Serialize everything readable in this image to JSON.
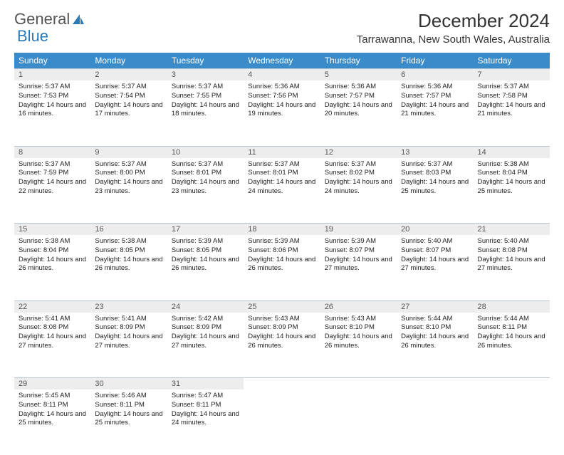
{
  "brand": {
    "part1": "General",
    "part2": "Blue"
  },
  "title": "December 2024",
  "location": "Tarrawanna, New South Wales, Australia",
  "colors": {
    "header_bg": "#3a8bc9",
    "daynum_bg": "#ededed",
    "week_border": "#6b8fad",
    "logo_blue": "#2a7ab8"
  },
  "weekdays": [
    "Sunday",
    "Monday",
    "Tuesday",
    "Wednesday",
    "Thursday",
    "Friday",
    "Saturday"
  ],
  "weeks": [
    [
      {
        "n": "1",
        "sr": "5:37 AM",
        "ss": "7:53 PM",
        "dl": "14 hours and 16 minutes."
      },
      {
        "n": "2",
        "sr": "5:37 AM",
        "ss": "7:54 PM",
        "dl": "14 hours and 17 minutes."
      },
      {
        "n": "3",
        "sr": "5:37 AM",
        "ss": "7:55 PM",
        "dl": "14 hours and 18 minutes."
      },
      {
        "n": "4",
        "sr": "5:36 AM",
        "ss": "7:56 PM",
        "dl": "14 hours and 19 minutes."
      },
      {
        "n": "5",
        "sr": "5:36 AM",
        "ss": "7:57 PM",
        "dl": "14 hours and 20 minutes."
      },
      {
        "n": "6",
        "sr": "5:36 AM",
        "ss": "7:57 PM",
        "dl": "14 hours and 21 minutes."
      },
      {
        "n": "7",
        "sr": "5:37 AM",
        "ss": "7:58 PM",
        "dl": "14 hours and 21 minutes."
      }
    ],
    [
      {
        "n": "8",
        "sr": "5:37 AM",
        "ss": "7:59 PM",
        "dl": "14 hours and 22 minutes."
      },
      {
        "n": "9",
        "sr": "5:37 AM",
        "ss": "8:00 PM",
        "dl": "14 hours and 23 minutes."
      },
      {
        "n": "10",
        "sr": "5:37 AM",
        "ss": "8:01 PM",
        "dl": "14 hours and 23 minutes."
      },
      {
        "n": "11",
        "sr": "5:37 AM",
        "ss": "8:01 PM",
        "dl": "14 hours and 24 minutes."
      },
      {
        "n": "12",
        "sr": "5:37 AM",
        "ss": "8:02 PM",
        "dl": "14 hours and 24 minutes."
      },
      {
        "n": "13",
        "sr": "5:37 AM",
        "ss": "8:03 PM",
        "dl": "14 hours and 25 minutes."
      },
      {
        "n": "14",
        "sr": "5:38 AM",
        "ss": "8:04 PM",
        "dl": "14 hours and 25 minutes."
      }
    ],
    [
      {
        "n": "15",
        "sr": "5:38 AM",
        "ss": "8:04 PM",
        "dl": "14 hours and 26 minutes."
      },
      {
        "n": "16",
        "sr": "5:38 AM",
        "ss": "8:05 PM",
        "dl": "14 hours and 26 minutes."
      },
      {
        "n": "17",
        "sr": "5:39 AM",
        "ss": "8:05 PM",
        "dl": "14 hours and 26 minutes."
      },
      {
        "n": "18",
        "sr": "5:39 AM",
        "ss": "8:06 PM",
        "dl": "14 hours and 26 minutes."
      },
      {
        "n": "19",
        "sr": "5:39 AM",
        "ss": "8:07 PM",
        "dl": "14 hours and 27 minutes."
      },
      {
        "n": "20",
        "sr": "5:40 AM",
        "ss": "8:07 PM",
        "dl": "14 hours and 27 minutes."
      },
      {
        "n": "21",
        "sr": "5:40 AM",
        "ss": "8:08 PM",
        "dl": "14 hours and 27 minutes."
      }
    ],
    [
      {
        "n": "22",
        "sr": "5:41 AM",
        "ss": "8:08 PM",
        "dl": "14 hours and 27 minutes."
      },
      {
        "n": "23",
        "sr": "5:41 AM",
        "ss": "8:09 PM",
        "dl": "14 hours and 27 minutes."
      },
      {
        "n": "24",
        "sr": "5:42 AM",
        "ss": "8:09 PM",
        "dl": "14 hours and 27 minutes."
      },
      {
        "n": "25",
        "sr": "5:43 AM",
        "ss": "8:09 PM",
        "dl": "14 hours and 26 minutes."
      },
      {
        "n": "26",
        "sr": "5:43 AM",
        "ss": "8:10 PM",
        "dl": "14 hours and 26 minutes."
      },
      {
        "n": "27",
        "sr": "5:44 AM",
        "ss": "8:10 PM",
        "dl": "14 hours and 26 minutes."
      },
      {
        "n": "28",
        "sr": "5:44 AM",
        "ss": "8:11 PM",
        "dl": "14 hours and 26 minutes."
      }
    ],
    [
      {
        "n": "29",
        "sr": "5:45 AM",
        "ss": "8:11 PM",
        "dl": "14 hours and 25 minutes."
      },
      {
        "n": "30",
        "sr": "5:46 AM",
        "ss": "8:11 PM",
        "dl": "14 hours and 25 minutes."
      },
      {
        "n": "31",
        "sr": "5:47 AM",
        "ss": "8:11 PM",
        "dl": "14 hours and 24 minutes."
      },
      null,
      null,
      null,
      null
    ]
  ],
  "labels": {
    "sunrise": "Sunrise:",
    "sunset": "Sunset:",
    "daylight": "Daylight:"
  }
}
